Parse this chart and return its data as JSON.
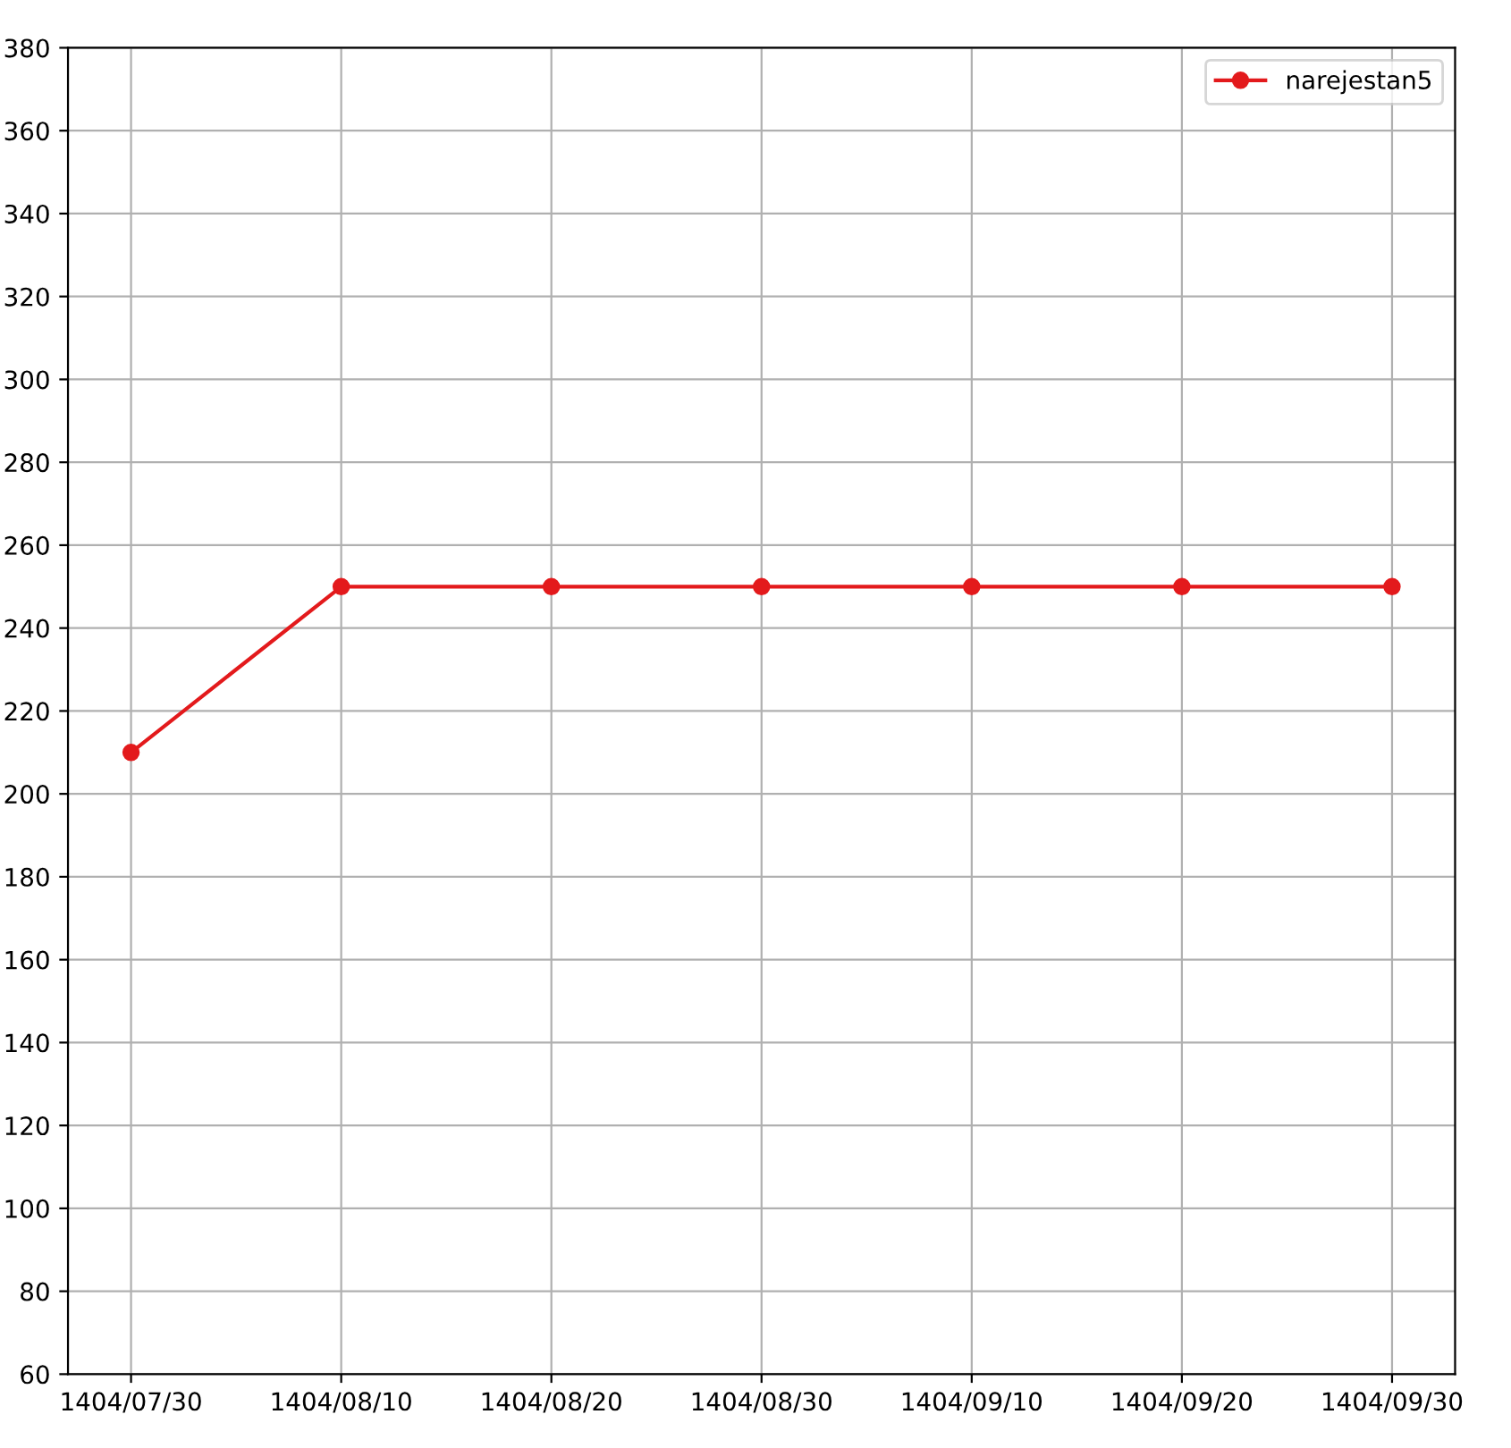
{
  "chart_data": {
    "type": "line",
    "categories": [
      "1404/07/30",
      "1404/08/10",
      "1404/08/20",
      "1404/08/30",
      "1404/09/10",
      "1404/09/20",
      "1404/09/30"
    ],
    "series": [
      {
        "name": "narejestan5",
        "color": "#e31a1c",
        "values": [
          210,
          250,
          250,
          250,
          250,
          250,
          250
        ]
      }
    ],
    "ylim": [
      60,
      380
    ],
    "yticks": [
      60,
      80,
      100,
      120,
      140,
      160,
      180,
      200,
      220,
      240,
      260,
      280,
      300,
      320,
      340,
      360,
      380
    ],
    "grid": true,
    "legend": "top right",
    "marker": "circle",
    "line_style": "solid"
  }
}
